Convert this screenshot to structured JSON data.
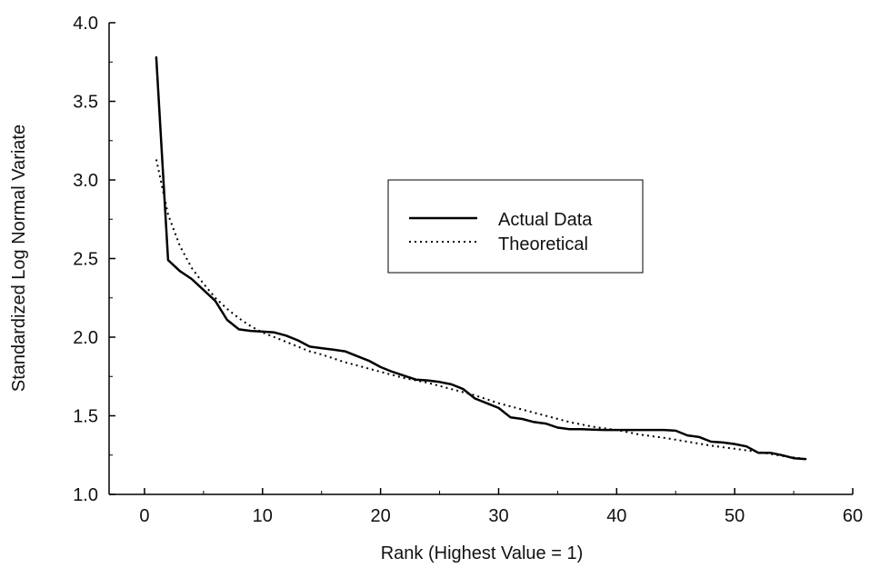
{
  "chart_data": {
    "type": "line",
    "xlabel": "Rank (Highest Value = 1)",
    "ylabel": "Standardized Log Normal Variate",
    "xlim": [
      -3,
      60
    ],
    "ylim": [
      1.0,
      4.0
    ],
    "x_ticks": [
      0,
      10,
      20,
      30,
      40,
      50,
      60
    ],
    "x_tick_labels": [
      "0",
      "10",
      "20",
      "30",
      "40",
      "50",
      "60"
    ],
    "y_ticks": [
      1.0,
      1.5,
      2.0,
      2.5,
      3.0,
      3.5,
      4.0
    ],
    "y_tick_labels": [
      "1.0",
      "1.5",
      "2.0",
      "2.5",
      "3.0",
      "3.5",
      "4.0"
    ],
    "grid": false,
    "legend_position": "center-right",
    "series": [
      {
        "name": "Actual Data",
        "style": "solid",
        "color": "#000000",
        "points": [
          [
            1,
            3.78
          ],
          [
            2,
            2.49
          ],
          [
            3,
            2.42
          ],
          [
            4,
            2.37
          ],
          [
            5,
            2.3
          ],
          [
            6,
            2.23
          ],
          [
            7,
            2.11
          ],
          [
            8,
            2.05
          ],
          [
            9,
            2.04
          ],
          [
            10,
            2.035
          ],
          [
            11,
            2.03
          ],
          [
            12,
            2.01
          ],
          [
            13,
            1.98
          ],
          [
            14,
            1.94
          ],
          [
            15,
            1.93
          ],
          [
            16,
            1.92
          ],
          [
            17,
            1.91
          ],
          [
            18,
            1.88
          ],
          [
            19,
            1.85
          ],
          [
            20,
            1.81
          ],
          [
            21,
            1.78
          ],
          [
            22,
            1.755
          ],
          [
            23,
            1.73
          ],
          [
            24,
            1.725
          ],
          [
            25,
            1.715
          ],
          [
            26,
            1.7
          ],
          [
            27,
            1.67
          ],
          [
            28,
            1.61
          ],
          [
            29,
            1.58
          ],
          [
            30,
            1.55
          ],
          [
            31,
            1.49
          ],
          [
            32,
            1.48
          ],
          [
            33,
            1.46
          ],
          [
            34,
            1.45
          ],
          [
            35,
            1.425
          ],
          [
            36,
            1.415
          ],
          [
            37,
            1.415
          ],
          [
            38,
            1.412
          ],
          [
            39,
            1.41
          ],
          [
            40,
            1.41
          ],
          [
            41,
            1.41
          ],
          [
            42,
            1.41
          ],
          [
            43,
            1.41
          ],
          [
            44,
            1.41
          ],
          [
            45,
            1.405
          ],
          [
            46,
            1.375
          ],
          [
            47,
            1.365
          ],
          [
            48,
            1.335
          ],
          [
            49,
            1.33
          ],
          [
            50,
            1.32
          ],
          [
            51,
            1.305
          ],
          [
            52,
            1.265
          ],
          [
            53,
            1.265
          ],
          [
            54,
            1.25
          ],
          [
            55,
            1.23
          ],
          [
            56,
            1.225
          ]
        ]
      },
      {
        "name": "Theoretical",
        "style": "dotted",
        "color": "#000000",
        "points": [
          [
            1,
            3.13
          ],
          [
            2,
            2.78
          ],
          [
            3,
            2.58
          ],
          [
            4,
            2.44
          ],
          [
            5,
            2.34
          ],
          [
            6,
            2.25
          ],
          [
            7,
            2.18
          ],
          [
            8,
            2.12
          ],
          [
            9,
            2.07
          ],
          [
            10,
            2.03
          ],
          [
            11,
            2.0
          ],
          [
            12,
            1.97
          ],
          [
            13,
            1.94
          ],
          [
            14,
            1.91
          ],
          [
            15,
            1.89
          ],
          [
            16,
            1.865
          ],
          [
            17,
            1.84
          ],
          [
            18,
            1.82
          ],
          [
            19,
            1.8
          ],
          [
            20,
            1.78
          ],
          [
            22,
            1.74
          ],
          [
            24,
            1.71
          ],
          [
            26,
            1.67
          ],
          [
            28,
            1.63
          ],
          [
            30,
            1.58
          ],
          [
            32,
            1.54
          ],
          [
            34,
            1.5
          ],
          [
            36,
            1.46
          ],
          [
            38,
            1.43
          ],
          [
            40,
            1.41
          ],
          [
            42,
            1.38
          ],
          [
            44,
            1.36
          ],
          [
            46,
            1.335
          ],
          [
            48,
            1.31
          ],
          [
            50,
            1.29
          ],
          [
            52,
            1.27
          ],
          [
            54,
            1.245
          ],
          [
            56,
            1.225
          ]
        ]
      }
    ]
  }
}
